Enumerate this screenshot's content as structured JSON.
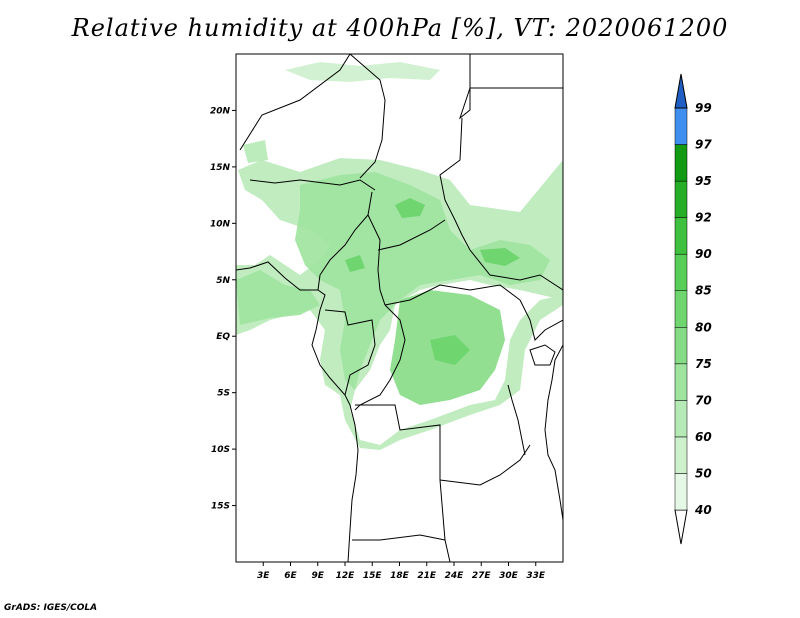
{
  "title": "Relative humidity at 400hPa [%], VT: 2020061200",
  "footer": "GrADS: IGES/COLA",
  "map": {
    "lon_range": [
      0,
      36
    ],
    "lat_range": [
      -20,
      25
    ],
    "lat_ticks": [
      {
        "value": 20,
        "label": "20N"
      },
      {
        "value": 15,
        "label": "15N"
      },
      {
        "value": 10,
        "label": "10N"
      },
      {
        "value": 5,
        "label": "5N"
      },
      {
        "value": 0,
        "label": "EQ"
      },
      {
        "value": -5,
        "label": "5S"
      },
      {
        "value": -10,
        "label": "10S"
      },
      {
        "value": -15,
        "label": "15S"
      }
    ],
    "lon_ticks": [
      {
        "value": 3,
        "label": "3E"
      },
      {
        "value": 6,
        "label": "6E"
      },
      {
        "value": 9,
        "label": "9E"
      },
      {
        "value": 12,
        "label": "12E"
      },
      {
        "value": 15,
        "label": "15E"
      },
      {
        "value": 18,
        "label": "18E"
      },
      {
        "value": 21,
        "label": "21E"
      },
      {
        "value": 24,
        "label": "24E"
      },
      {
        "value": 27,
        "label": "27E"
      },
      {
        "value": 30,
        "label": "30E"
      },
      {
        "value": 33,
        "label": "33E"
      }
    ]
  },
  "colorbar": {
    "levels": [
      {
        "label": "40",
        "color": "#e5f7e5"
      },
      {
        "label": "50",
        "color": "#cdf0cd"
      },
      {
        "label": "60",
        "color": "#b5e9b5"
      },
      {
        "label": "70",
        "color": "#9ee39e"
      },
      {
        "label": "75",
        "color": "#86dc86"
      },
      {
        "label": "80",
        "color": "#6fd56f"
      },
      {
        "label": "85",
        "color": "#57ce57"
      },
      {
        "label": "90",
        "color": "#3fc03f"
      },
      {
        "label": "92",
        "color": "#27ae27"
      },
      {
        "label": "95",
        "color": "#129a12"
      },
      {
        "label": "97",
        "color": "#3f8ff0"
      },
      {
        "label": "99",
        "color": "#2a72d8"
      }
    ],
    "over_color": "#1f5fc4"
  }
}
